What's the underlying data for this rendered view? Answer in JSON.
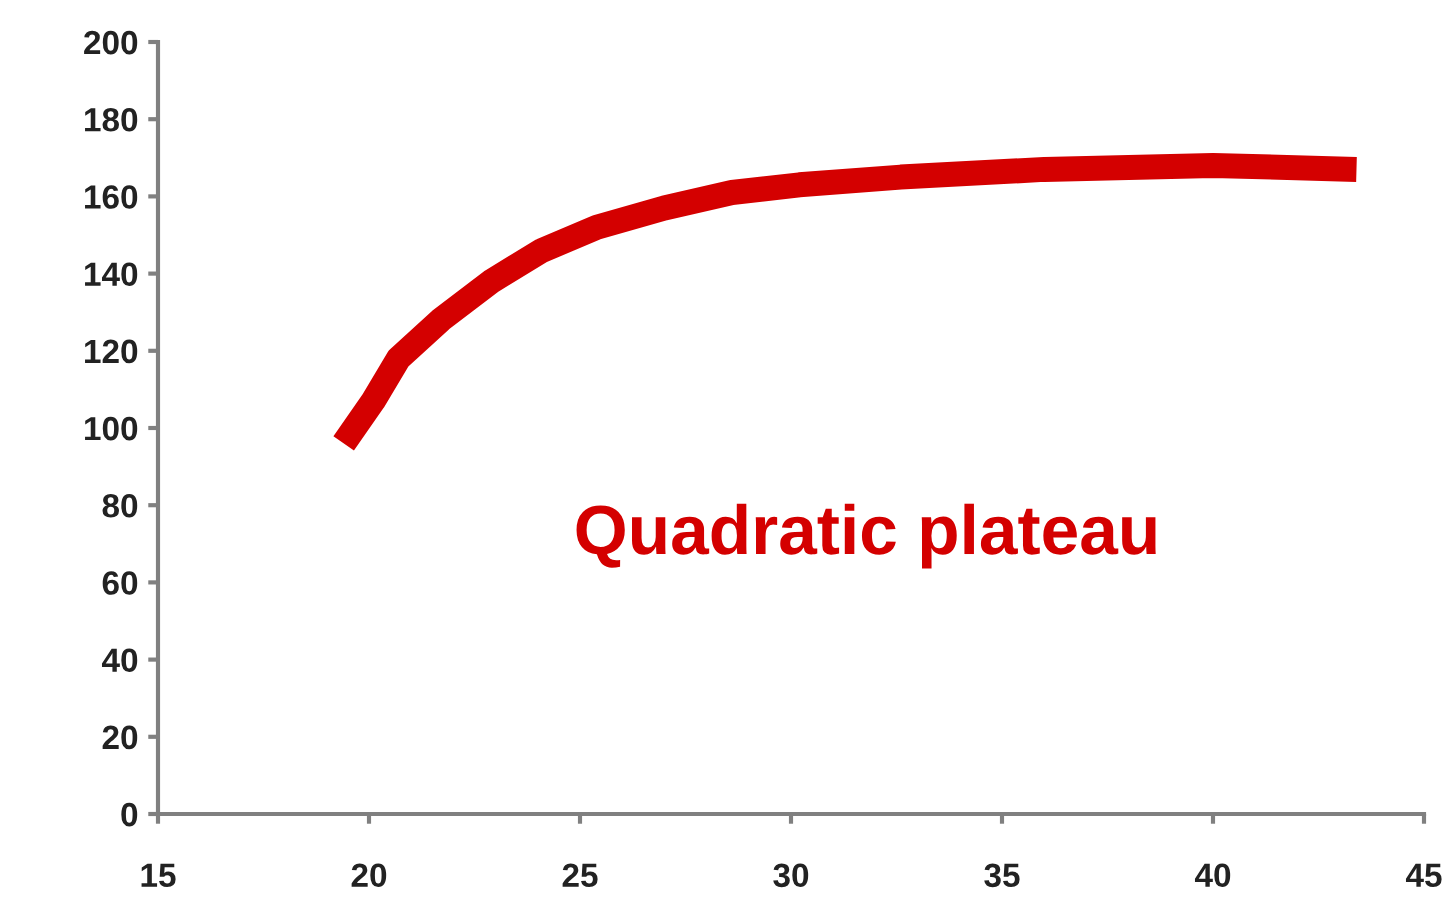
{
  "chart_data": {
    "type": "line",
    "annotations": [
      "Quadratic plateau"
    ],
    "series": [
      {
        "color": "#d40000",
        "x": [
          19.4,
          20.1,
          20.7,
          21.7,
          22.9,
          24.1,
          25.4,
          27.0,
          28.6,
          30.2,
          32.6,
          36.0,
          40.0,
          43.4
        ],
        "values": [
          96,
          107,
          118,
          128,
          138,
          146,
          152,
          157,
          161,
          163,
          165,
          167,
          168,
          167
        ]
      }
    ],
    "xlim": [
      15,
      45
    ],
    "xticks": [
      15,
      20,
      25,
      30,
      35,
      40,
      45
    ],
    "ylim": [
      0,
      200
    ],
    "yticks": [
      0,
      20,
      40,
      60,
      80,
      100,
      120,
      140,
      160,
      180,
      200
    ],
    "grid": false,
    "legend": false,
    "marker": "none",
    "line_style": "solid"
  }
}
